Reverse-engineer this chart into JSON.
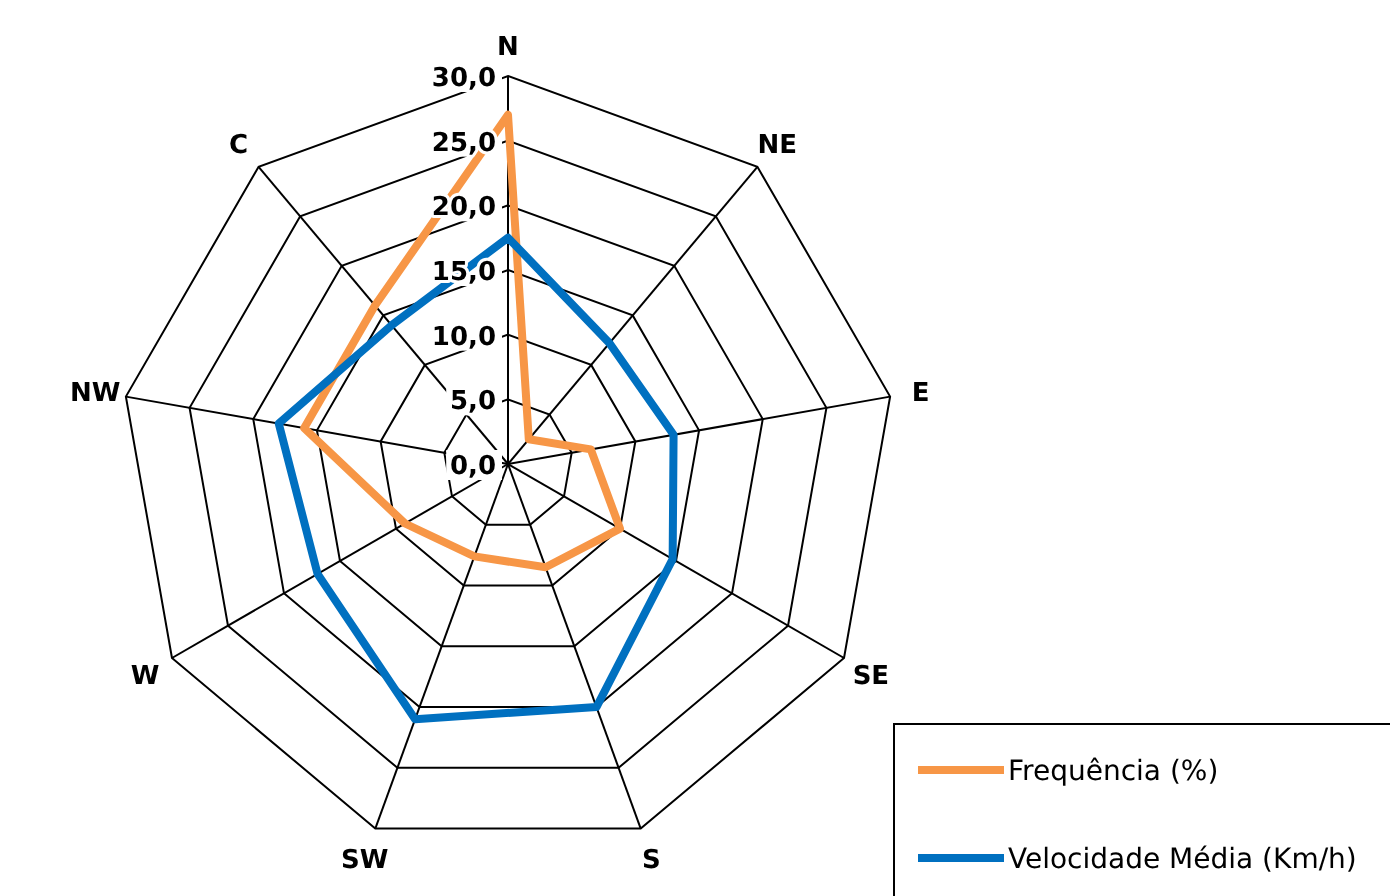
{
  "chart_data": {
    "type": "radar",
    "categories": [
      "N",
      "NE",
      "E",
      "SE",
      "S",
      "SW",
      "W",
      "NW",
      "C"
    ],
    "series": [
      {
        "name": "Frequência (%)",
        "color": "#f79646",
        "values": [
          27,
          2.5,
          6.5,
          10,
          8.5,
          7.6,
          9.2,
          16,
          16
        ]
      },
      {
        "name": "Velocidade Média (Km/h)",
        "color": "#0070c0",
        "values": [
          17.5,
          12.2,
          13,
          14.7,
          20,
          21,
          17,
          18,
          14
        ]
      }
    ],
    "ylim": [
      0,
      30
    ],
    "yticks": [
      {
        "value": 0,
        "label": "0,0"
      },
      {
        "value": 5,
        "label": "5,0"
      },
      {
        "value": 10,
        "label": "10,0"
      },
      {
        "value": 15,
        "label": "15,0"
      },
      {
        "value": 20,
        "label": "20,0"
      },
      {
        "value": 25,
        "label": "25,0"
      },
      {
        "value": 30,
        "label": "30,0"
      }
    ],
    "grid": true,
    "legend": "bottom right"
  }
}
